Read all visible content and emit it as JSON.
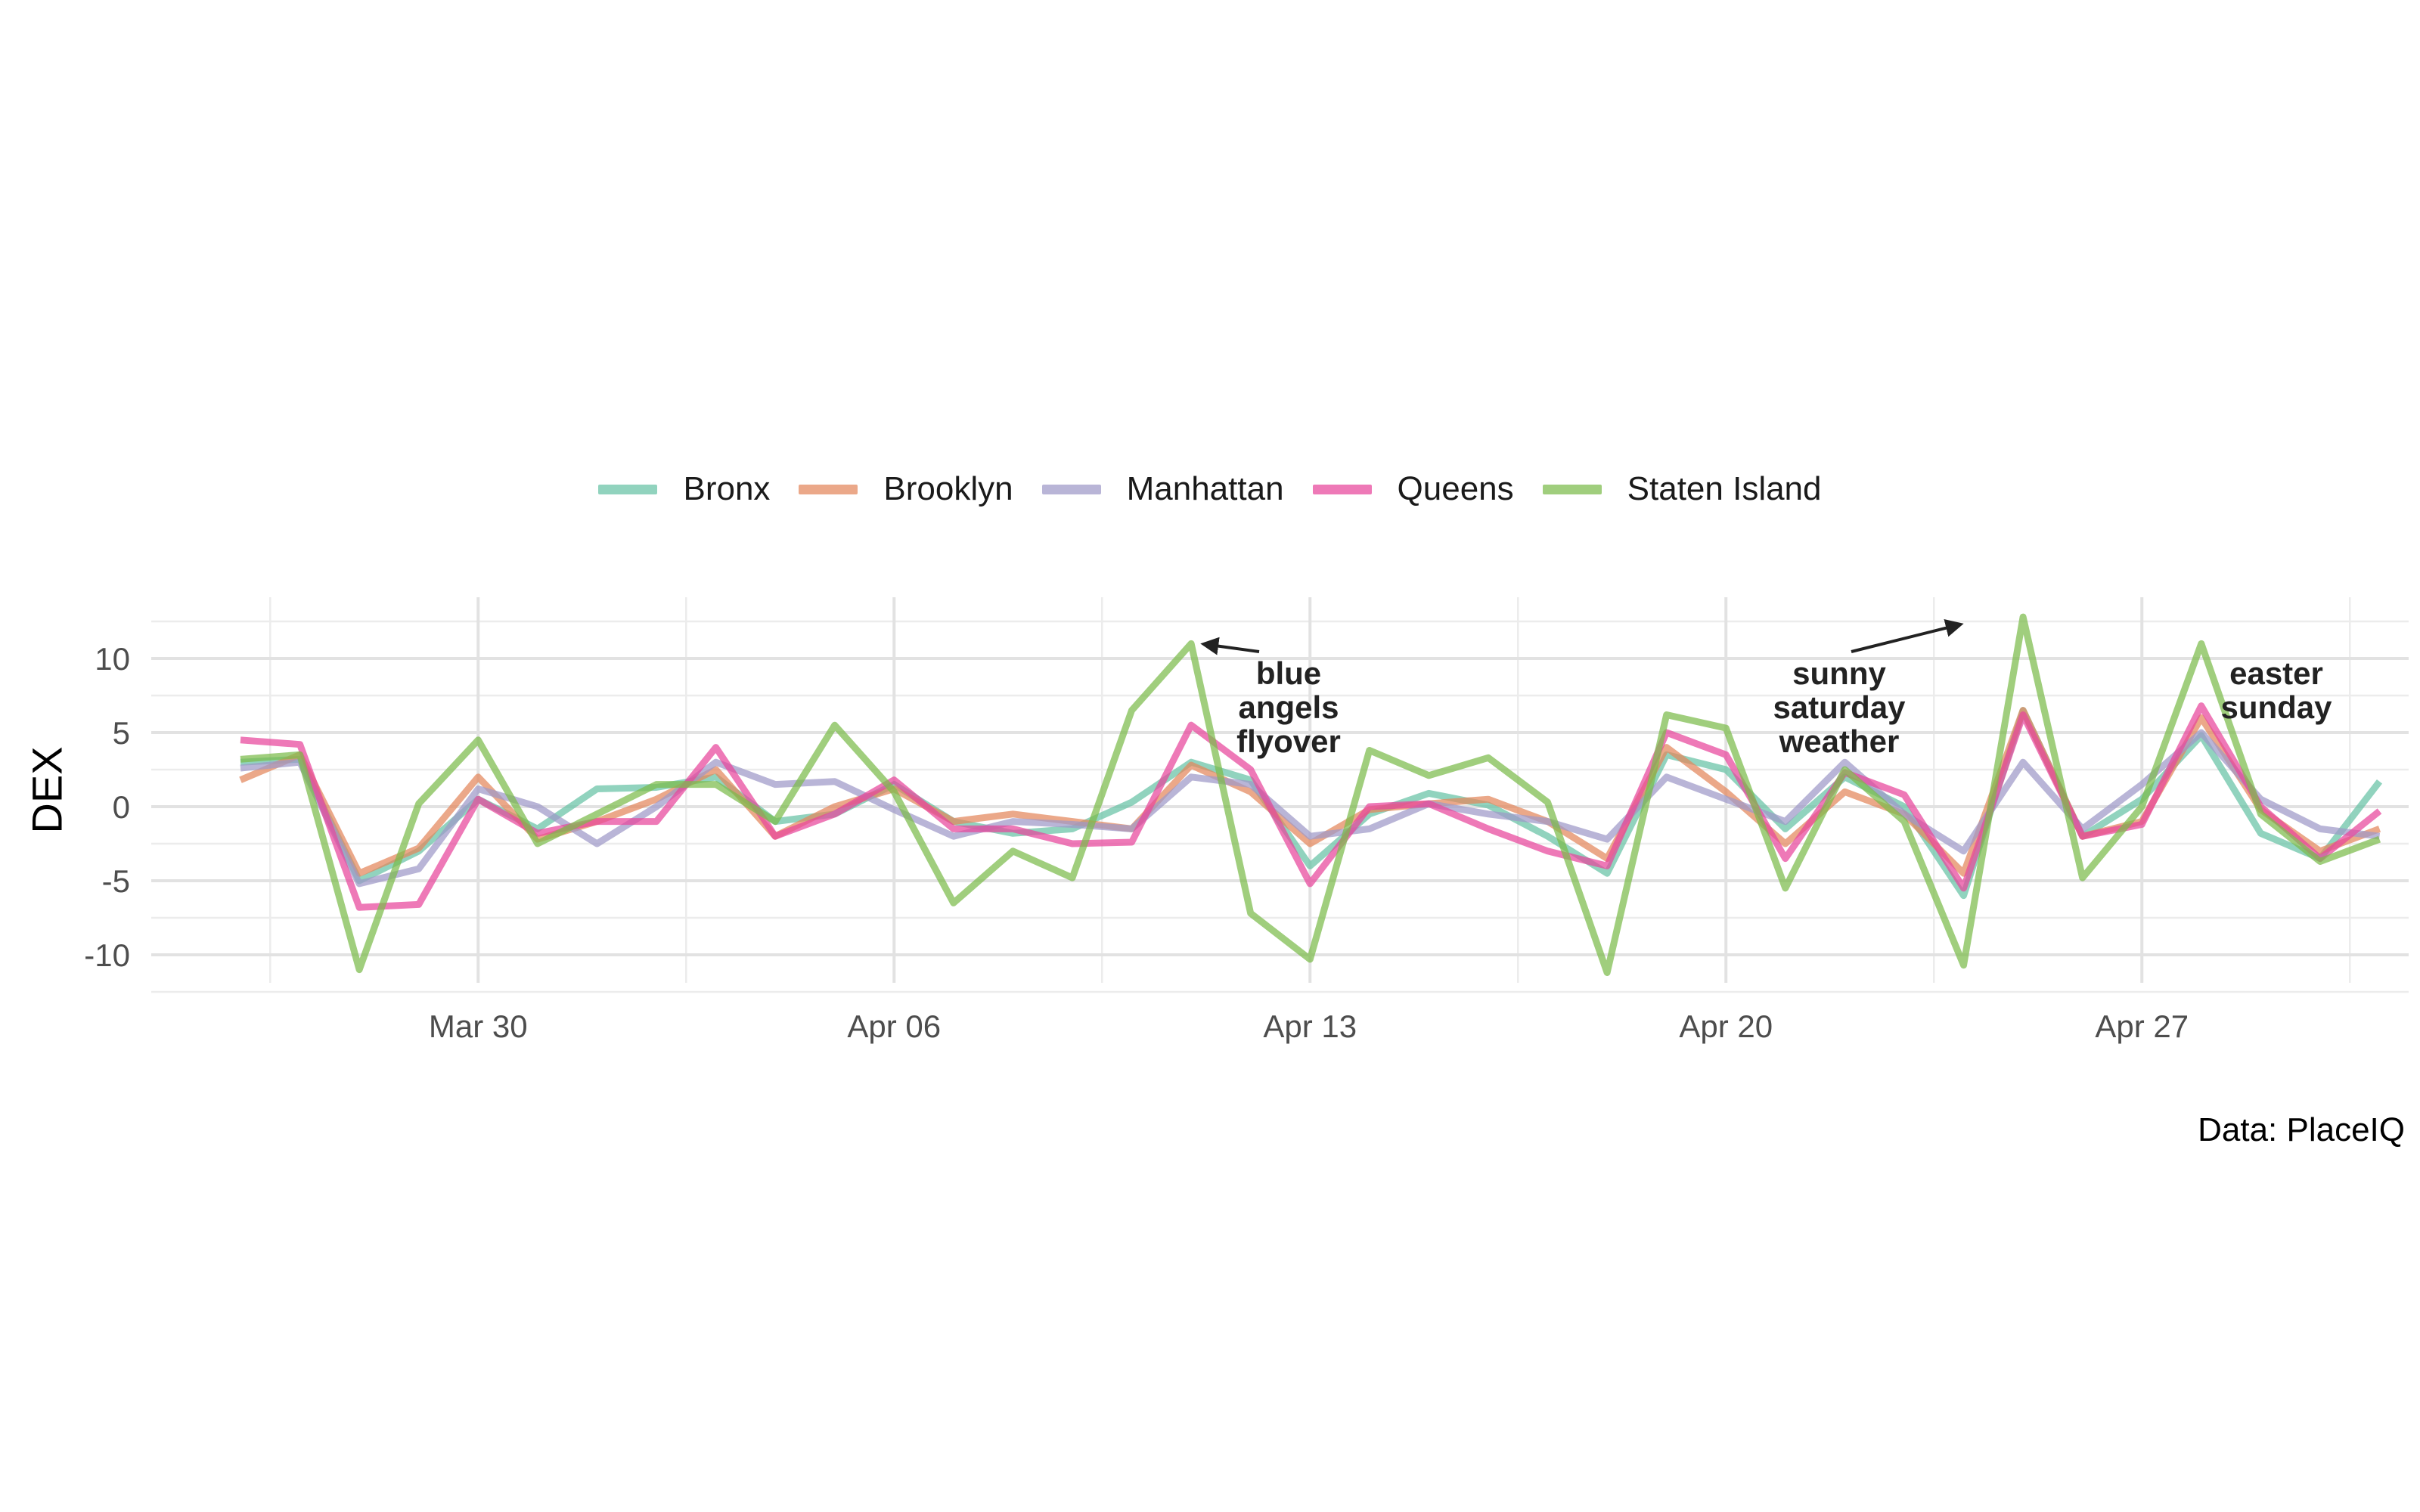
{
  "chart_data": {
    "type": "line",
    "xlabel": "",
    "ylabel": "DEX",
    "caption": "Data: PlaceIQ",
    "x_start": "Mar 26",
    "x": [
      "Mar 26",
      "Mar 27",
      "Mar 28",
      "Mar 29",
      "Mar 30",
      "Mar 31",
      "Apr 01",
      "Apr 02",
      "Apr 03",
      "Apr 04",
      "Apr 05",
      "Apr 06",
      "Apr 07",
      "Apr 08",
      "Apr 09",
      "Apr 10",
      "Apr 11",
      "Apr 12",
      "Apr 13",
      "Apr 14",
      "Apr 15",
      "Apr 16",
      "Apr 17",
      "Apr 18",
      "Apr 19",
      "Apr 20",
      "Apr 21",
      "Apr 22",
      "Apr 23",
      "Apr 24",
      "Apr 25",
      "Apr 26",
      "Apr 27",
      "Apr 28",
      "Apr 29",
      "Apr 30",
      "May 01"
    ],
    "x_ticks": [
      "Mar 30",
      "Apr 06",
      "Apr 13",
      "Apr 20",
      "Apr 27"
    ],
    "y_ticks": [
      10,
      5,
      0,
      -5,
      -10
    ],
    "ylim": [
      -12,
      13.5
    ],
    "grid": true,
    "legend_position": "top",
    "series": [
      {
        "name": "Bronx",
        "color": "#66c2a5",
        "values": [
          3.0,
          3.2,
          -5.0,
          -3.0,
          0.5,
          -1.5,
          1.2,
          1.3,
          2.0,
          -1.0,
          -0.5,
          1.5,
          -1.0,
          -1.8,
          -1.5,
          0.3,
          3.0,
          1.8,
          -4.0,
          -0.5,
          0.9,
          0.1,
          -2.0,
          -4.5,
          3.5,
          2.5,
          -1.5,
          2.0,
          0.0,
          -6.0,
          6.5,
          -2.0,
          0.5,
          4.8,
          -1.8,
          -3.5,
          1.7
        ]
      },
      {
        "name": "Brooklyn",
        "color": "#e3865b",
        "values": [
          1.8,
          3.5,
          -4.5,
          -2.8,
          2.0,
          -2.2,
          -1.0,
          0.5,
          2.5,
          -2.0,
          0.0,
          1.2,
          -1.0,
          -0.5,
          -1.0,
          -1.5,
          2.8,
          1.0,
          -2.5,
          -0.2,
          0.2,
          0.5,
          -1.0,
          -3.5,
          4.0,
          1.0,
          -2.5,
          1.0,
          -0.5,
          -4.5,
          6.5,
          -2.0,
          -1.0,
          6.0,
          -0.2,
          -3.0,
          -1.5
        ]
      },
      {
        "name": "Manhattan",
        "color": "#9e98c8",
        "values": [
          2.6,
          3.0,
          -5.2,
          -4.2,
          1.2,
          0.0,
          -2.5,
          0.0,
          3.0,
          1.5,
          1.7,
          -0.2,
          -2.0,
          -1.0,
          -1.2,
          -1.5,
          2.0,
          1.5,
          -2.0,
          -1.5,
          0.2,
          -0.5,
          -1.0,
          -2.2,
          2.0,
          0.5,
          -1.0,
          3.0,
          -0.5,
          -3.0,
          3.0,
          -1.5,
          1.5,
          5.0,
          0.5,
          -1.5,
          -2.0
        ]
      },
      {
        "name": "Queens",
        "color": "#e7459b",
        "values": [
          4.5,
          4.2,
          -6.8,
          -6.6,
          0.5,
          -1.8,
          -1.0,
          -1.0,
          4.0,
          -2.0,
          -0.5,
          1.8,
          -1.5,
          -1.5,
          -2.5,
          -2.4,
          5.5,
          2.5,
          -5.2,
          0.0,
          0.2,
          -1.5,
          -3.0,
          -4.0,
          5.0,
          3.5,
          -3.5,
          2.3,
          0.8,
          -5.5,
          6.2,
          -2.0,
          -1.2,
          6.8,
          0.0,
          -3.5,
          -0.3
        ]
      },
      {
        "name": "Staten Island",
        "color": "#7cbb4b",
        "values": [
          3.2,
          3.5,
          -11.0,
          0.2,
          4.5,
          -2.5,
          -0.5,
          1.5,
          1.5,
          -1.0,
          5.5,
          1.0,
          -6.5,
          -3.0,
          -4.8,
          6.5,
          11.0,
          -7.2,
          -10.3,
          3.8,
          2.1,
          3.3,
          0.3,
          -11.2,
          6.2,
          5.3,
          -5.5,
          2.5,
          -1.0,
          -10.7,
          12.8,
          -4.8,
          0.0,
          11.0,
          -0.5,
          -3.7,
          -2.2
        ]
      }
    ],
    "annotations": [
      {
        "lines": [
          "blue",
          "angels",
          "flyover"
        ]
      },
      {
        "lines": [
          "sunny",
          "saturday",
          "weather"
        ]
      },
      {
        "lines": [
          "easter",
          "sunday"
        ]
      }
    ]
  }
}
